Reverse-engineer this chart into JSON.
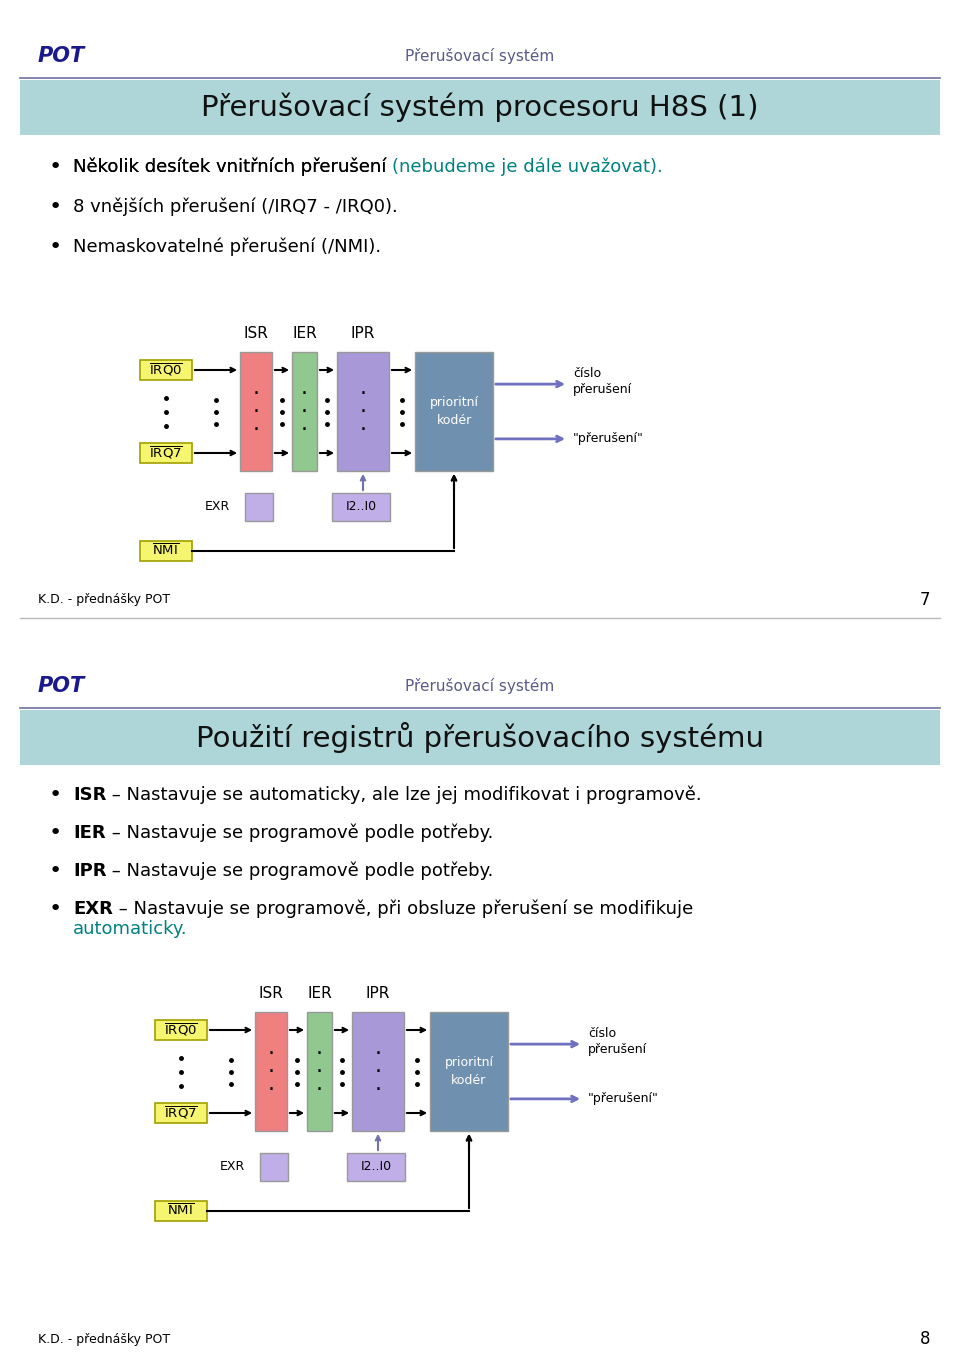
{
  "page_bg": "#ffffff",
  "header_line_color": "#7070a0",
  "header_bg_color": "#aed6d8",
  "pot_color": "#1a1a8c",
  "subtitle_color": "#5a5a8a",
  "teal_color": "#008080",
  "slide1": {
    "pot_text": "POT",
    "subtitle": "Přerušovací systém",
    "title": "Přerušovací systém procesoru H8S (1)",
    "bullet1_main": "Několik desítek vnitřních přerušení ",
    "bullet1_teal": "(nebudeme je dále uvažovat).",
    "bullet2": "8 vnějších přerušení (/IRQ7 - /IRQ0).",
    "bullet3": "Nemaskovatelné přerušení (/NMI).",
    "footer_left": "K.D. - přednášky POT",
    "page_num": "7"
  },
  "slide2": {
    "pot_text": "POT",
    "subtitle": "Přerušovací systém",
    "title": "Použití registrů přerušovacího systému",
    "bullet1_key": "ISR",
    "bullet1_rest": " – Nastavuje se automaticky, ale lze jej modifikovat i programově.",
    "bullet2_key": "IER",
    "bullet2_rest": " – Nastavuje se programově podle potřeby.",
    "bullet3_key": "IPR",
    "bullet3_rest": " – Nastavuje se programově podle potřeby.",
    "bullet4_key": "EXR",
    "bullet4_rest": " – Nastavuje se programově, při obsluze přerušení se modifikuje",
    "bullet4_cont": "automaticky.",
    "footer_left": "K.D. - přednášky POT",
    "page_num": "8"
  },
  "diagram": {
    "irq_color": "#f5f570",
    "irq_border": "#a0a000",
    "isr_color": "#f08080",
    "ier_color": "#90c890",
    "ipr_color": "#a898d8",
    "exr_color": "#c0aee8",
    "i2i0_color": "#c0aee8",
    "koder_color": "#7090b0",
    "arrow_color": "#000000",
    "out_arrow_color": "#7070c0"
  }
}
